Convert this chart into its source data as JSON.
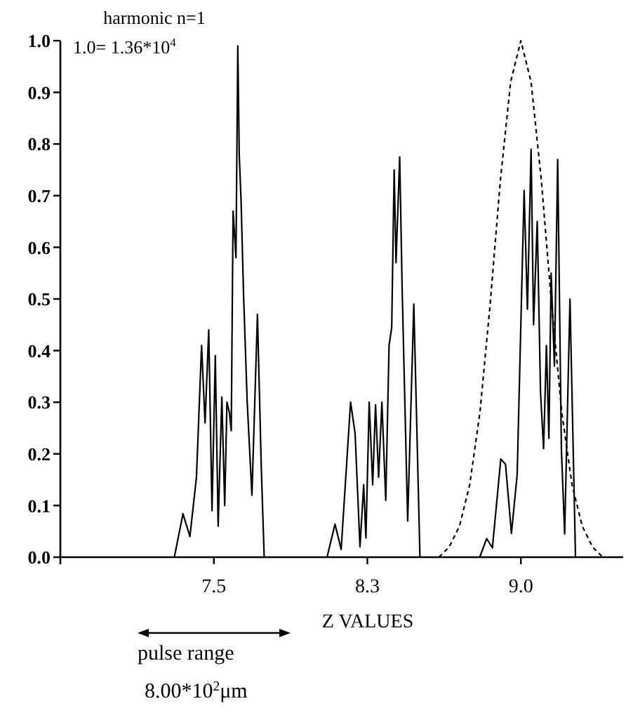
{
  "chart_data": {
    "type": "line",
    "xlabel": "Z VALUES",
    "annotations": [
      "harmonic n=1",
      "1.0= 1.36*10$^{4}$",
      "pulse range",
      "8.00*10$^{2}$μm"
    ],
    "xlim": [
      6.75,
      9.5
    ],
    "xticks": [
      7.5,
      {
        "value": 8.25,
        "label": "8.3"
      },
      {
        "value": 9.0,
        "label": "9.0"
      }
    ],
    "ylim": [
      0,
      1.0
    ],
    "yticks": [
      {
        "value": 0,
        "label": "0.0"
      },
      0.1,
      0.2,
      0.3,
      0.4,
      0.5,
      0.6,
      0.7,
      0.8,
      0.9,
      {
        "value": 1,
        "label": "1.0"
      }
    ],
    "series": [
      {
        "color": "#000000",
        "line_style": "solid",
        "x": [
          6.75,
          7.307,
          7.349,
          7.383,
          7.415,
          7.44,
          7.457,
          7.475,
          7.491,
          7.507,
          7.521,
          7.539,
          7.553,
          7.564,
          7.576,
          7.585,
          7.594,
          7.608,
          7.617,
          7.624,
          7.633,
          7.645,
          7.663,
          7.686,
          7.713,
          7.732,
          7.746,
          8.053,
          8.092,
          8.122,
          8.168,
          8.19,
          8.214,
          8.232,
          8.243,
          8.259,
          8.276,
          8.29,
          8.305,
          8.321,
          8.34,
          8.356,
          8.369,
          8.381,
          8.39,
          8.408,
          8.42,
          8.447,
          8.477,
          8.507,
          8.799,
          8.833,
          8.861,
          8.902,
          8.925,
          8.954,
          8.982,
          9.016,
          9.032,
          9.05,
          9.062,
          9.08,
          9.096,
          9.111,
          9.125,
          9.137,
          9.148,
          9.164,
          9.18,
          9.198,
          9.214,
          9.24,
          9.267,
          9.5
        ],
        "values": [
          0,
          0,
          0.084,
          0.04,
          0.155,
          0.41,
          0.26,
          0.44,
          0.09,
          0.39,
          0.06,
          0.31,
          0.1,
          0.3,
          0.28,
          0.245,
          0.67,
          0.58,
          0.99,
          0.78,
          0.69,
          0.51,
          0.3,
          0.12,
          0.47,
          0.17,
          0,
          0,
          0.064,
          0.015,
          0.3,
          0.24,
          0.02,
          0.14,
          0.037,
          0.3,
          0.14,
          0.295,
          0.155,
          0.3,
          0.11,
          0.41,
          0.445,
          0.75,
          0.57,
          0.775,
          0.52,
          0.07,
          0.49,
          0,
          0,
          0.036,
          0.018,
          0.19,
          0.18,
          0.046,
          0.16,
          0.71,
          0.48,
          0.79,
          0.45,
          0.65,
          0.32,
          0.21,
          0.41,
          0.23,
          0.55,
          0.37,
          0.77,
          0.21,
          0.045,
          0.5,
          0,
          0
        ]
      },
      {
        "color": "#000000",
        "line_style": "dashed",
        "x": [
          8.6,
          8.65,
          8.7,
          8.75,
          8.8,
          8.85,
          8.9,
          8.95,
          9.0,
          9.05,
          9.1,
          9.15,
          9.2,
          9.25,
          9.3,
          9.35,
          9.4
        ],
        "values": [
          0,
          0.02,
          0.06,
          0.14,
          0.28,
          0.49,
          0.73,
          0.92,
          1.0,
          0.92,
          0.73,
          0.49,
          0.28,
          0.14,
          0.06,
          0.02,
          0
        ]
      }
    ]
  }
}
